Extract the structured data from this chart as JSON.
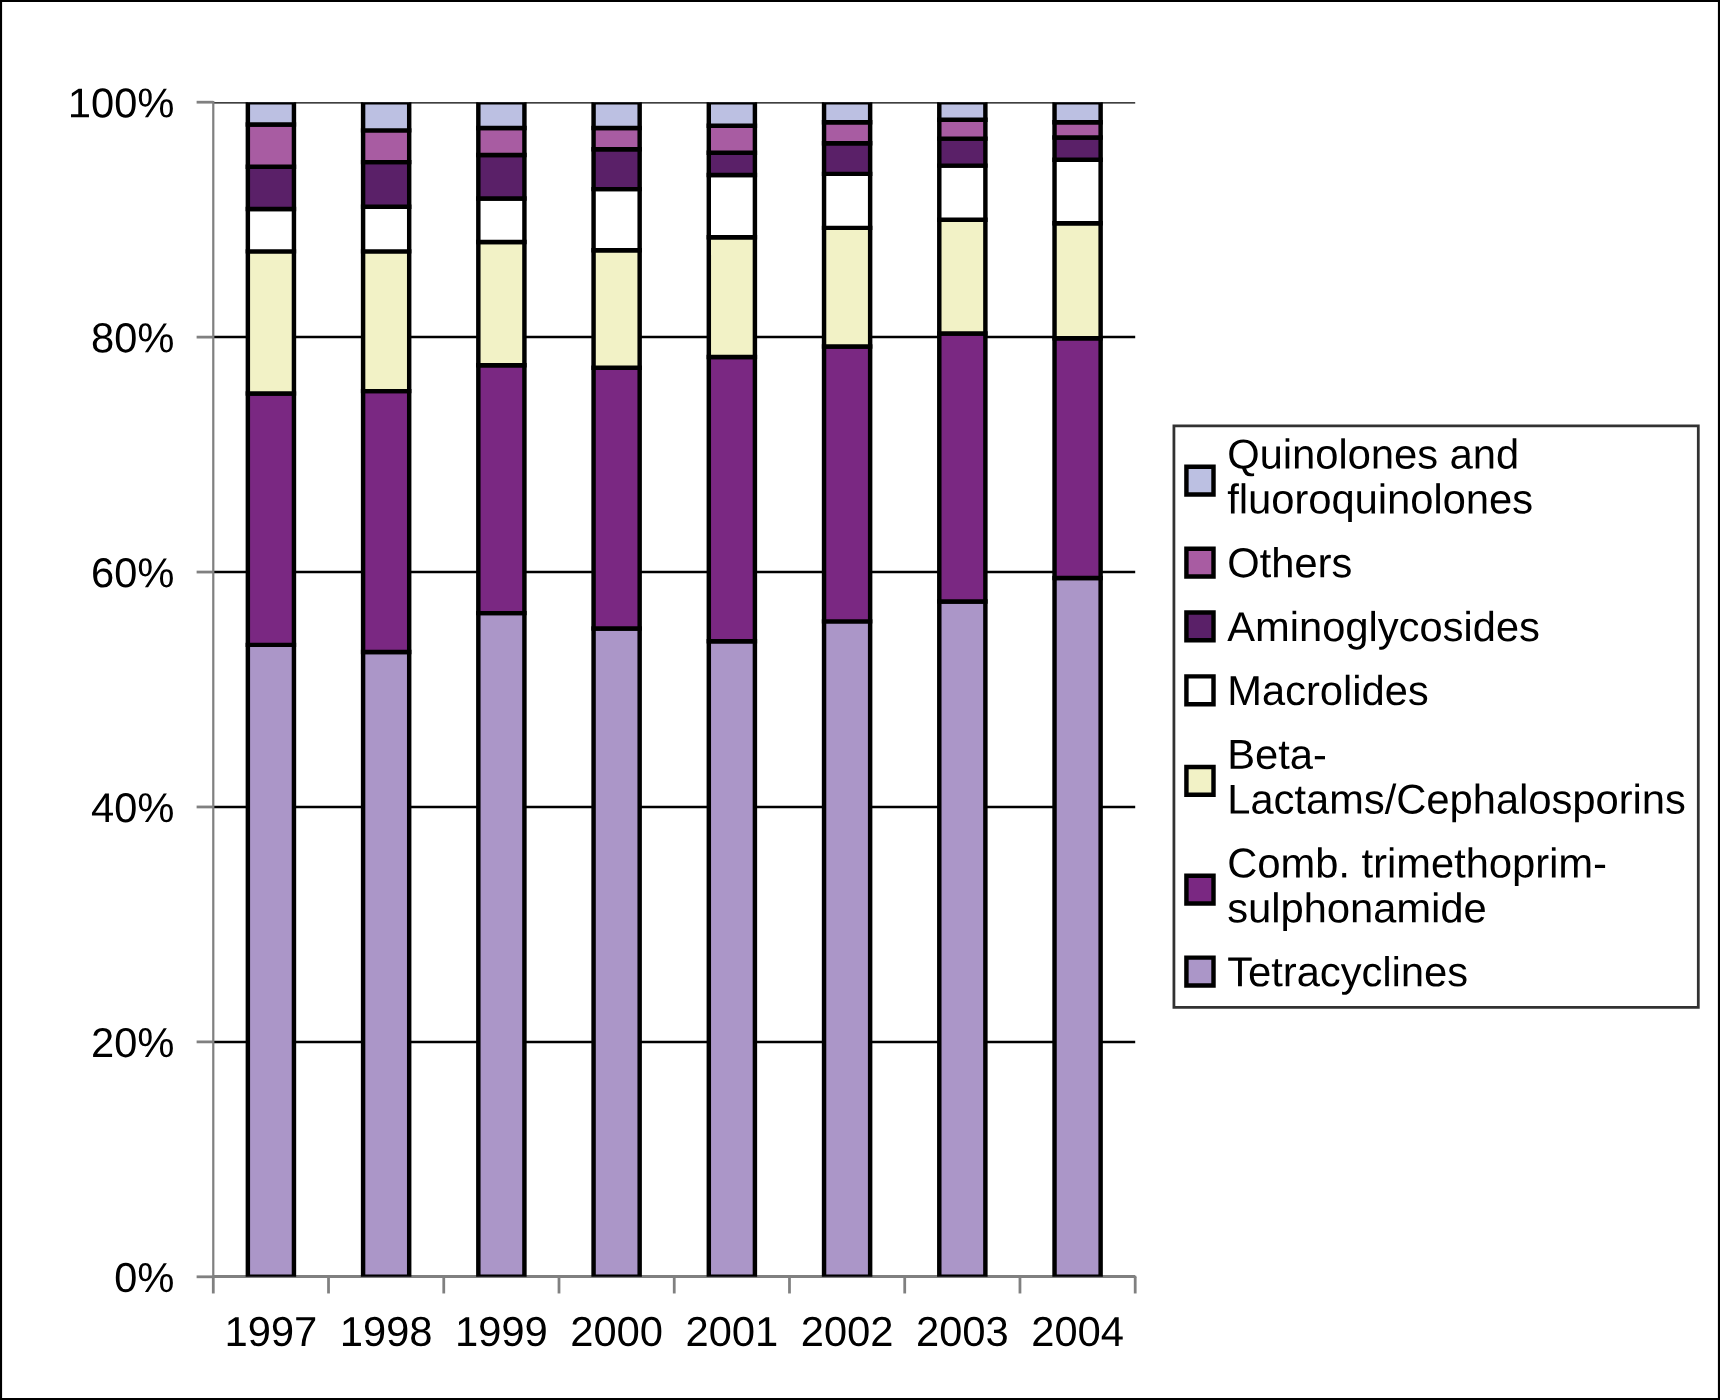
{
  "chart_data": {
    "type": "bar",
    "stacked": true,
    "categories": [
      "1997",
      "1998",
      "1999",
      "2000",
      "2001",
      "2002",
      "2003",
      "2004"
    ],
    "series": [
      {
        "name": "Tetracyclines",
        "color": "#ab96c8",
        "values": [
          53.8,
          53.2,
          56.5,
          55.2,
          54.1,
          55.8,
          57.5,
          59.5
        ]
      },
      {
        "name": "Comb. trimethoprim-\nsulphonamide",
        "color": "#7a2882",
        "values": [
          21.4,
          22.2,
          21.1,
          22.2,
          24.2,
          23.4,
          22.8,
          20.4
        ]
      },
      {
        "name": "Beta-\nLactams/Cephalosporins",
        "color": "#f2f2c6",
        "values": [
          12.1,
          11.9,
          10.5,
          10.0,
          10.2,
          10.1,
          9.7,
          9.8
        ]
      },
      {
        "name": "Macrolides",
        "color": "#ffffff",
        "values": [
          3.6,
          3.8,
          3.7,
          5.2,
          5.3,
          4.6,
          4.6,
          5.4
        ]
      },
      {
        "name": "Aminoglycosides",
        "color": "#5a2068",
        "values": [
          3.6,
          3.8,
          3.7,
          3.4,
          1.9,
          2.6,
          2.3,
          1.9
        ]
      },
      {
        "name": "Others",
        "color": "#a85ca2",
        "values": [
          3.6,
          2.7,
          2.3,
          1.8,
          2.3,
          1.8,
          1.6,
          1.3
        ]
      },
      {
        "name": "Quinolones and\nfluoroquinolones",
        "color": "#bcc0e2",
        "values": [
          1.9,
          2.4,
          2.2,
          2.2,
          2.0,
          1.7,
          1.5,
          1.7
        ]
      }
    ],
    "ylim": [
      0,
      100
    ],
    "yticks": [
      {
        "value": 0,
        "label": "0%"
      },
      {
        "value": 20,
        "label": "20%"
      },
      {
        "value": 40,
        "label": "40%"
      },
      {
        "value": 60,
        "label": "60%"
      },
      {
        "value": 80,
        "label": "80%"
      },
      {
        "value": 100,
        "label": "100%"
      }
    ],
    "grid": "y",
    "legend": "right"
  }
}
